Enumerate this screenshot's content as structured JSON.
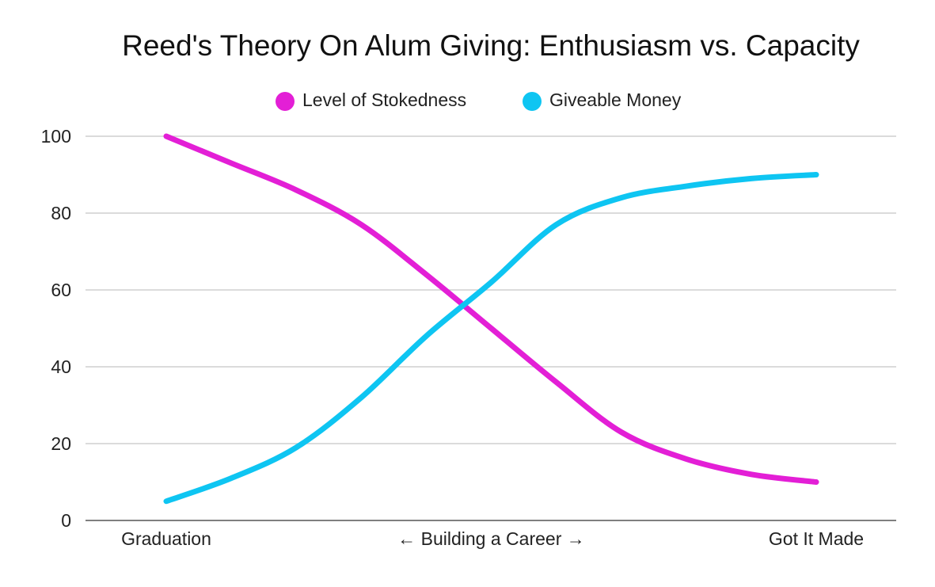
{
  "chart_data": {
    "type": "line",
    "title": "Reed's Theory On Alum Giving: Enthusiasm vs. Capacity",
    "xlabel": "",
    "ylabel": "",
    "categories": [
      "Graduation",
      "← Building a Career →",
      "Got It Made"
    ],
    "x": [
      0,
      0.1,
      0.2,
      0.3,
      0.4,
      0.5,
      0.6,
      0.7,
      0.8,
      0.9,
      1.0
    ],
    "series": [
      {
        "name": "Level of Stokedness",
        "color": "#e31fd6",
        "values": [
          100,
          93,
          86,
          77,
          64,
          50,
          36,
          23,
          16,
          12,
          10
        ]
      },
      {
        "name": "Giveable Money",
        "color": "#0ec5f2",
        "values": [
          5,
          11,
          19,
          32,
          48,
          62,
          77,
          84,
          87,
          89,
          90
        ]
      }
    ],
    "ylim": [
      0,
      100
    ],
    "yticks": [
      0,
      20,
      40,
      60,
      80,
      100
    ],
    "grid": true,
    "legend_position": "top-center"
  }
}
